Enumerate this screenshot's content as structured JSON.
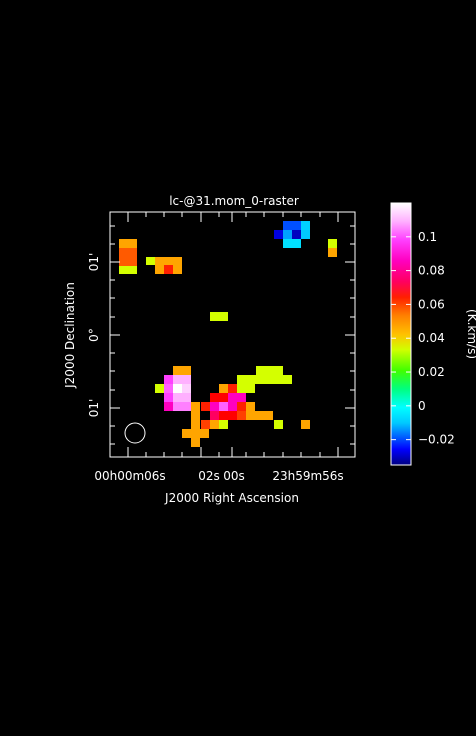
{
  "title": "lc-@31.mom_0-raster",
  "x_axis_label": "J2000 Right Ascension",
  "y_axis_label": "J2000 Declination",
  "colorbar_label": "(K.km/s)",
  "x_ticks": [
    {
      "text": "00h00m06s"
    },
    {
      "text": "02s"
    },
    {
      "text": "00s"
    },
    {
      "text": "23h59m56s"
    }
  ],
  "y_ticks": [
    {
      "text": "01'"
    },
    {
      "text": "0°"
    },
    {
      "text": "01'"
    }
  ],
  "colorbar": {
    "min": -0.035,
    "max": 0.12,
    "ticks": [
      {
        "value": 0.1,
        "text": "0.1"
      },
      {
        "value": 0.08,
        "text": "0.08"
      },
      {
        "value": 0.06,
        "text": "0.06"
      },
      {
        "value": 0.04,
        "text": "0.04"
      },
      {
        "value": 0.02,
        "text": "0.02"
      },
      {
        "value": 0.0,
        "text": "0"
      },
      {
        "value": -0.02,
        "text": "−0.02"
      }
    ]
  },
  "colors": {
    "background": "#000000",
    "axes": "#ffffff",
    "map_background": "#ffffff"
  }
}
